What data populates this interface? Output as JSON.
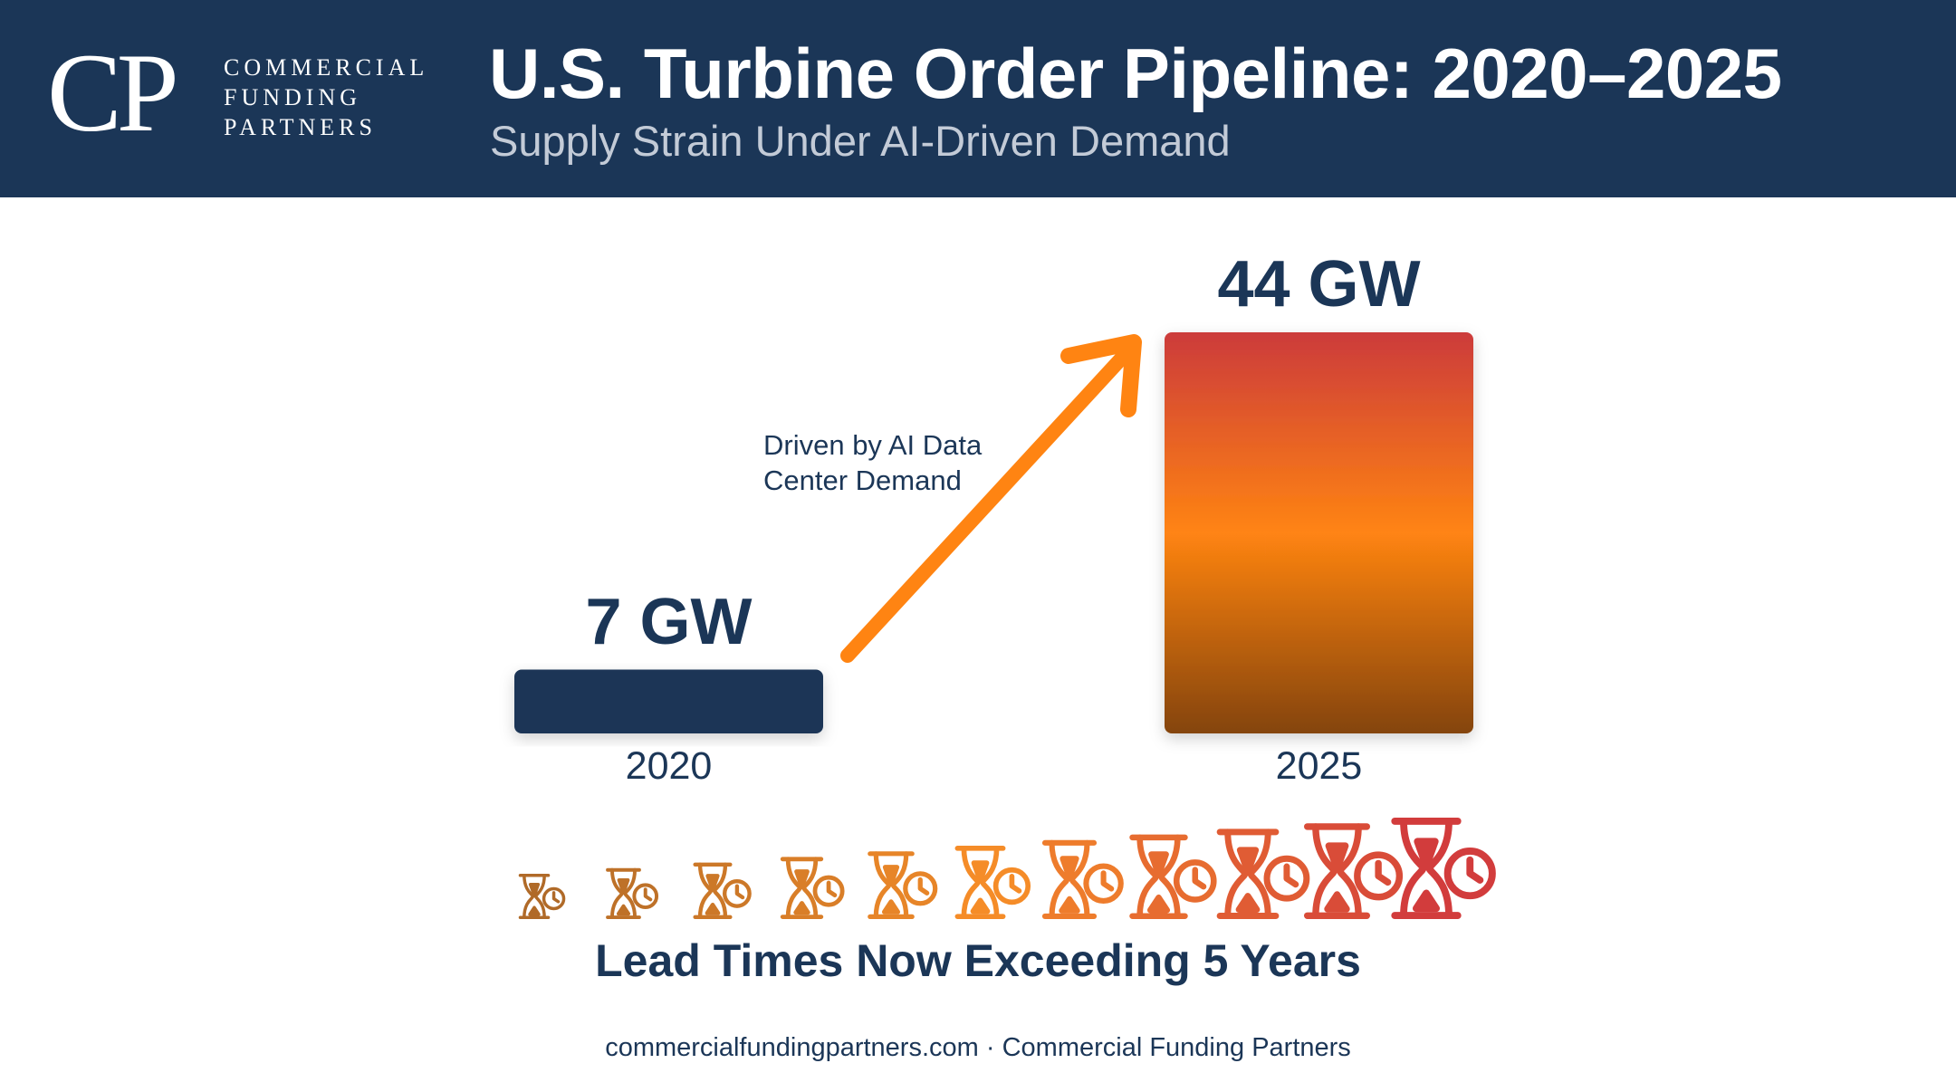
{
  "header": {
    "logo_mark": "CP",
    "logo_lines": [
      "COMMERCIAL",
      "FUNDING",
      "PARTNERS"
    ],
    "title": "U.S. Turbine Order Pipeline: 2020–2025",
    "subtitle": "Supply Strain Under AI-Driven Demand"
  },
  "chart_data": {
    "type": "bar",
    "title": "U.S. Turbine Order Pipeline: 2020–2025",
    "subtitle": "Supply Strain Under AI-Driven Demand",
    "categories": [
      "2020",
      "2025"
    ],
    "values": [
      7,
      44
    ],
    "unit": "GW",
    "data_labels": [
      "7 GW",
      "44 GW"
    ],
    "ylim": [
      0,
      44
    ],
    "grid": false,
    "annotation": "Driven by AI Data Center Demand",
    "annotation_lines": [
      "Driven by AI Data",
      "Center Demand"
    ],
    "bar_colors": [
      "#1b3657",
      "gradient: #cc3b3b → #ff8412 → #84440a"
    ]
  },
  "lead_times": {
    "icon": "hourglass-clock-icon",
    "icon_count": 11,
    "caption": "Lead Times Now Exceeding 5 Years"
  },
  "footer": {
    "site": "commercialfundingpartners.com",
    "separator": " · ",
    "company": "Commercial Funding Partners"
  },
  "colors": {
    "navy": "#1b3657",
    "orange": "#ff8412",
    "red": "#cc3b3b",
    "brown": "#84440a"
  }
}
